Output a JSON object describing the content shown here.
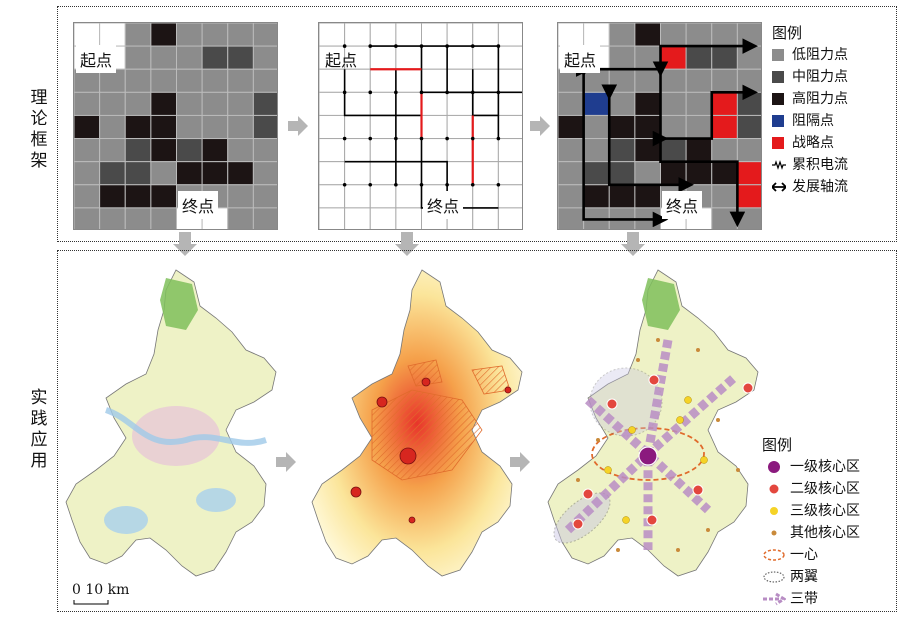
{
  "framework": {
    "label": "理论框架",
    "start_label": "起点",
    "end_label": "终点",
    "legend": {
      "title": "图例",
      "items": [
        {
          "label": "低阻力点",
          "color": "#8c8c8c",
          "kind": "square"
        },
        {
          "label": "中阻力点",
          "color": "#4a4a4a",
          "kind": "square"
        },
        {
          "label": "高阻力点",
          "color": "#1c1414",
          "kind": "square"
        },
        {
          "label": "阻隔点",
          "color": "#1f3d8f",
          "kind": "square"
        },
        {
          "label": "战略点",
          "color": "#e41a1c",
          "kind": "square"
        },
        {
          "label": "累积电流",
          "color": "#000000",
          "kind": "current"
        },
        {
          "label": "发展轴流",
          "color": "#000000",
          "kind": "axis"
        }
      ]
    }
  },
  "practice": {
    "label": "实践应用",
    "legend": {
      "title": "图例",
      "items": [
        {
          "label": "一级核心区",
          "color": "#8b1a7e",
          "kind": "dot-large"
        },
        {
          "label": "二级核心区",
          "color": "#e3473e",
          "kind": "dot-medium"
        },
        {
          "label": "三级核心区",
          "color": "#f5d327",
          "kind": "dot-small"
        },
        {
          "label": "其他核心区",
          "color": "#c98a3a",
          "kind": "dot-tiny"
        },
        {
          "label": "一心",
          "color": "#e06b2c",
          "kind": "ellipse-dash"
        },
        {
          "label": "两翼",
          "color": "#666666",
          "kind": "ellipse-dot"
        },
        {
          "label": "三带",
          "color": "#b88dc4",
          "kind": "band-arrow"
        }
      ]
    },
    "scale": "0 10 km"
  }
}
